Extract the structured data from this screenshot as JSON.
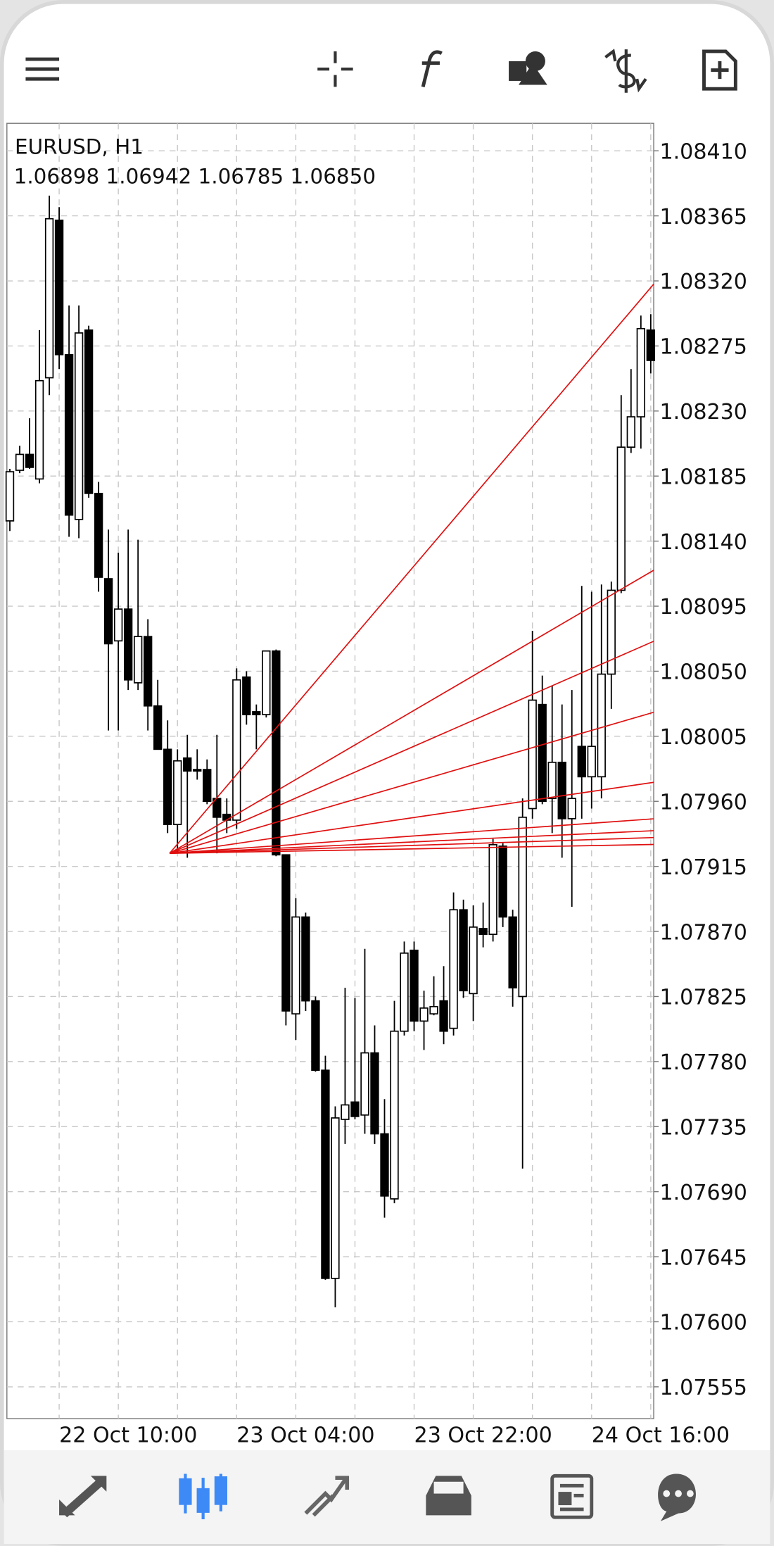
{
  "chart_data": {
    "type": "candlestick",
    "title": "EURUSD, H1",
    "subtitle": "1.06898 1.06942 1.06785 1.06850",
    "categories": [
      null,
      null,
      null,
      null,
      null,
      "22 Oct 10:00",
      null,
      null,
      null,
      null,
      null,
      null,
      null,
      null,
      null,
      null,
      null,
      null,
      null,
      null,
      null,
      null,
      null,
      "23 Oct 04:00",
      null,
      null,
      null,
      null,
      null,
      null,
      null,
      null,
      null,
      null,
      null,
      null,
      null,
      null,
      null,
      null,
      null,
      "23 Oct 22:00",
      null,
      null,
      null,
      null,
      null,
      null,
      null,
      null,
      null,
      null,
      null,
      null,
      null,
      null,
      null,
      null,
      null,
      "24 Oct 16:00",
      null,
      null,
      null,
      null,
      null,
      null
    ],
    "open": [
      1.08154,
      1.08189,
      1.082,
      1.08183,
      1.08253,
      1.08362,
      1.08269,
      1.08155,
      1.08286,
      1.08173,
      1.08114,
      1.08071,
      1.08093,
      1.08042,
      1.08074,
      1.08026,
      1.07996,
      1.07944,
      1.0799,
      1.07982,
      1.07982,
      1.07962,
      1.07951,
      1.07947,
      1.08046,
      1.08022,
      1.0802,
      1.08064,
      1.07923,
      1.07813,
      1.0788,
      1.07822,
      1.07774,
      1.0763,
      1.0774,
      1.07752,
      1.07743,
      1.07786,
      1.0773,
      1.07685,
      1.07801,
      1.07857,
      1.07808,
      1.07813,
      1.07822,
      1.07803,
      1.07885,
      1.07827,
      1.07872,
      1.07868,
      1.07929,
      1.0788,
      1.07825,
      1.07955,
      1.08027,
      1.07962,
      1.07987,
      1.07948,
      1.07998,
      1.07977,
      1.07977,
      1.08048,
      1.08106,
      1.08205,
      1.08226,
      1.08286
    ],
    "high": [
      1.0819,
      1.08206,
      1.08225,
      1.08286,
      1.08379,
      1.08371,
      1.08303,
      1.08303,
      1.08289,
      1.08181,
      1.08148,
      1.08132,
      1.08148,
      1.08141,
      1.08086,
      1.08044,
      1.08016,
      1.07996,
      1.08006,
      1.07996,
      1.07989,
      1.08006,
      1.07962,
      1.08052,
      1.0805,
      1.08027,
      1.08064,
      1.08065,
      1.07923,
      1.07893,
      1.07883,
      1.07825,
      1.07784,
      1.07749,
      1.07831,
      1.07824,
      1.07858,
      1.07805,
      1.07754,
      1.07822,
      1.07863,
      1.07863,
      1.07829,
      1.07839,
      1.07846,
      1.07897,
      1.07892,
      1.07888,
      1.0789,
      1.07934,
      1.07931,
      1.07885,
      1.07962,
      1.08078,
      1.08047,
      1.0804,
      1.08027,
      1.08037,
      1.08109,
      1.08105,
      1.0811,
      1.08112,
      1.08241,
      1.08259,
      1.08296,
      1.08297
    ],
    "low": [
      1.08147,
      1.08187,
      1.0819,
      1.0818,
      1.08241,
      1.08259,
      1.08143,
      1.08142,
      1.0817,
      1.08105,
      1.08009,
      1.08009,
      1.08037,
      1.08037,
      1.08009,
      1.07996,
      1.07938,
      1.07924,
      1.07921,
      1.07975,
      1.07958,
      1.07924,
      1.07938,
      1.07941,
      1.08013,
      1.07996,
      1.08018,
      1.07922,
      1.07805,
      1.07795,
      1.07815,
      1.07773,
      1.07629,
      1.0761,
      1.07723,
      1.0774,
      1.0773,
      1.07723,
      1.07672,
      1.07682,
      1.07798,
      1.07801,
      1.07788,
      1.07812,
      1.07792,
      1.07798,
      1.07824,
      1.07808,
      1.07859,
      1.07863,
      1.07873,
      1.07818,
      1.07706,
      1.07948,
      1.07958,
      1.07938,
      1.07921,
      1.07887,
      1.07948,
      1.07955,
      1.07962,
      1.08024,
      1.08104,
      1.08201,
      1.08204,
      1.08256
    ],
    "close": [
      1.08188,
      1.082,
      1.08191,
      1.08251,
      1.08363,
      1.08269,
      1.08158,
      1.08284,
      1.08173,
      1.08115,
      1.08069,
      1.08093,
      1.08044,
      1.08074,
      1.08026,
      1.07996,
      1.07944,
      1.07988,
      1.07981,
      1.07981,
      1.0796,
      1.07949,
      1.07947,
      1.08044,
      1.0802,
      1.0802,
      1.08064,
      1.07923,
      1.07815,
      1.0788,
      1.07822,
      1.07774,
      1.0763,
      1.07741,
      1.0775,
      1.07742,
      1.07786,
      1.0773,
      1.07687,
      1.07801,
      1.07855,
      1.07808,
      1.07817,
      1.07818,
      1.07801,
      1.07885,
      1.07829,
      1.07873,
      1.07868,
      1.0793,
      1.0788,
      1.07831,
      1.07949,
      1.0803,
      1.0796,
      1.07987,
      1.07948,
      1.07962,
      1.07977,
      1.07998,
      1.08048,
      1.08106,
      1.08205,
      1.08226,
      1.08287,
      1.08265
    ],
    "ylim": [
      1.07533,
      1.08429
    ],
    "yticks": [
      {
        "value": 1.0841,
        "label": "1.08410"
      },
      1.08365,
      {
        "value": 1.0832,
        "label": "1.08320"
      },
      1.08275,
      {
        "value": 1.0823,
        "label": "1.08230"
      },
      1.08185,
      {
        "value": 1.0814,
        "label": "1.08140"
      },
      1.08095,
      {
        "value": 1.0805,
        "label": "1.08050"
      },
      1.08005,
      {
        "value": 1.0796,
        "label": "1.07960"
      },
      1.07915,
      {
        "value": 1.0787,
        "label": "1.07870"
      },
      1.07825,
      {
        "value": 1.0778,
        "label": "1.07780"
      },
      1.07735,
      {
        "value": 1.0769,
        "label": "1.07690"
      },
      1.07645,
      {
        "value": 1.076,
        "label": "1.07600"
      },
      1.07555
    ],
    "grid": true,
    "up_color": "#ffffff",
    "down_color": "#000000"
  }
}
